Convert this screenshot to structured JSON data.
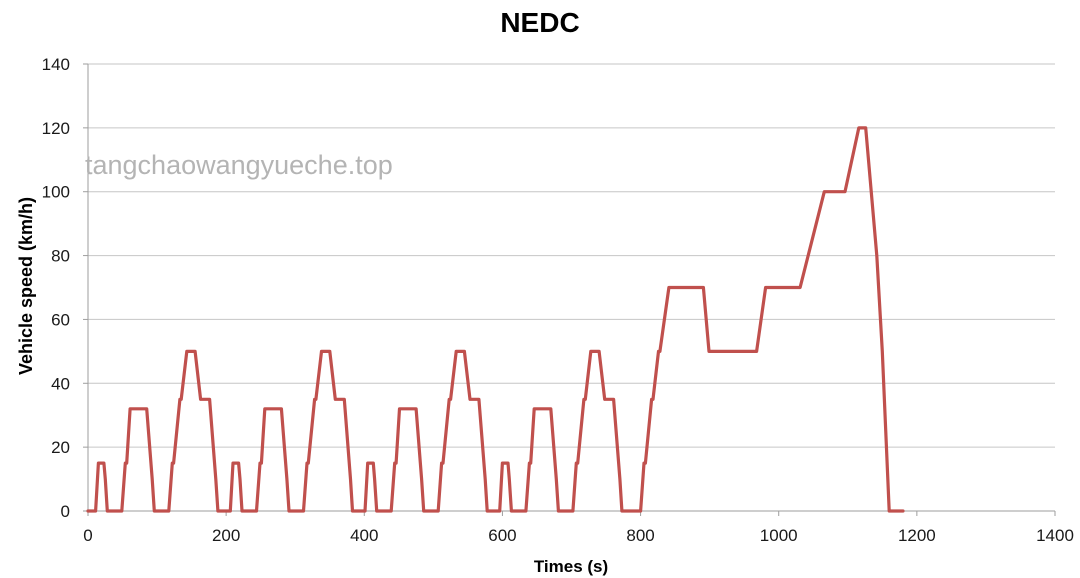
{
  "watermark": "tangchaowangyueche.top",
  "colors": {
    "grid": "#c6c6c6",
    "axis": "#9e9e9e",
    "watermark": "#b4b4b4"
  },
  "chart_data": {
    "type": "line",
    "title": "NEDC",
    "xlabel": "Times (s)",
    "ylabel": "Vehicle speed (km/h)",
    "xlim": [
      0,
      1400
    ],
    "ylim": [
      0,
      140
    ],
    "xticks": [
      0,
      200,
      400,
      600,
      800,
      1000,
      1200,
      1400
    ],
    "yticks": [
      0,
      20,
      40,
      60,
      80,
      100,
      120,
      140
    ],
    "grid": true,
    "legend": false,
    "series": [
      {
        "color": "#c0504d",
        "x": [
          0,
          11,
          15,
          23,
          25,
          28,
          49,
          54,
          56,
          61,
          85,
          93,
          96,
          117,
          122,
          124,
          133,
          135,
          143,
          155,
          163,
          176,
          185,
          188,
          195,
          206,
          210,
          218,
          220,
          223,
          244,
          249,
          251,
          256,
          280,
          288,
          291,
          312,
          317,
          319,
          328,
          330,
          338,
          350,
          358,
          371,
          380,
          383,
          390,
          401,
          405,
          413,
          415,
          418,
          439,
          444,
          446,
          451,
          475,
          483,
          486,
          507,
          512,
          514,
          523,
          525,
          533,
          545,
          553,
          566,
          575,
          578,
          585,
          596,
          600,
          608,
          610,
          613,
          634,
          639,
          641,
          646,
          670,
          678,
          681,
          702,
          707,
          709,
          718,
          720,
          728,
          740,
          748,
          761,
          770,
          773,
          780,
          800,
          805,
          807,
          816,
          818,
          826,
          828,
          841,
          891,
          899,
          968,
          981,
          1031,
          1066,
          1096,
          1116,
          1126,
          1142,
          1150,
          1160,
          1180
        ],
        "y": [
          0,
          0,
          15,
          15,
          10,
          0,
          0,
          15,
          15,
          32,
          32,
          10,
          0,
          0,
          15,
          15,
          35,
          35,
          50,
          50,
          35,
          35,
          10,
          0,
          0,
          0,
          15,
          15,
          10,
          0,
          0,
          15,
          15,
          32,
          32,
          10,
          0,
          0,
          15,
          15,
          35,
          35,
          50,
          50,
          35,
          35,
          10,
          0,
          0,
          0,
          15,
          15,
          10,
          0,
          0,
          15,
          15,
          32,
          32,
          10,
          0,
          0,
          15,
          15,
          35,
          35,
          50,
          50,
          35,
          35,
          10,
          0,
          0,
          0,
          15,
          15,
          10,
          0,
          0,
          15,
          15,
          32,
          32,
          10,
          0,
          0,
          15,
          15,
          35,
          35,
          50,
          50,
          35,
          35,
          10,
          0,
          0,
          0,
          15,
          15,
          35,
          35,
          50,
          50,
          70,
          70,
          50,
          50,
          70,
          70,
          100,
          100,
          120,
          120,
          80,
          50,
          0,
          0
        ]
      }
    ]
  }
}
